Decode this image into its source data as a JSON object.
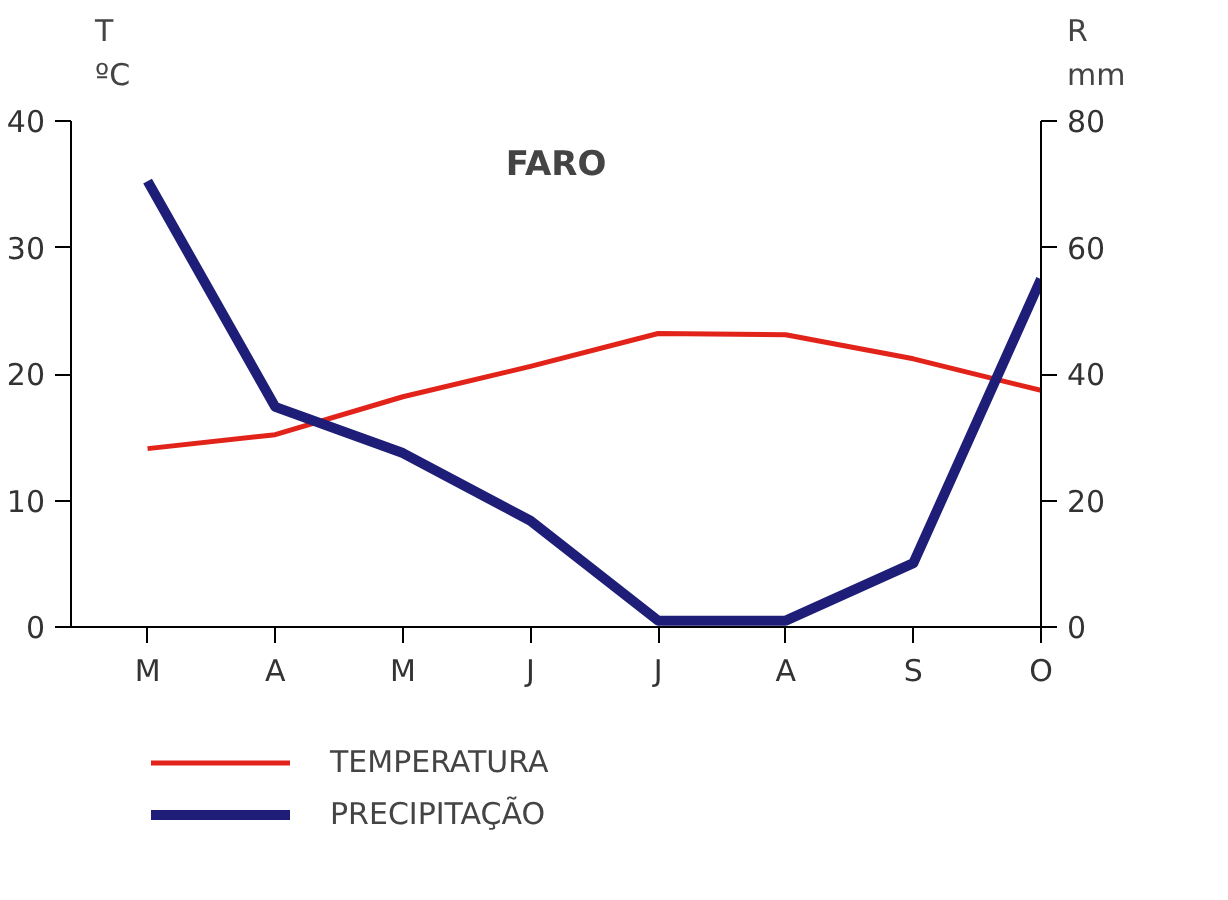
{
  "chart_data": {
    "type": "line",
    "title": "FARO",
    "ylabel": "T\nºC",
    "y2label": "R\nmm",
    "categories": [
      "M",
      "A",
      "M",
      "J",
      "J",
      "A",
      "S",
      "O"
    ],
    "series": [
      {
        "name": "TEMPERATURA",
        "color": "#e2231a",
        "values": [
          14.1,
          15.2,
          18.2,
          20.6,
          23.2,
          23.1,
          21.2,
          18.7
        ]
      },
      {
        "name": "PRECIPITAÇÃO",
        "color": "#1e1e78",
        "axis": "y2",
        "values": [
          70.5,
          34.8,
          27.5,
          16.8,
          1,
          1,
          10.1,
          55
        ]
      }
    ],
    "ylim": [
      0,
      40
    ],
    "yticks": [
      0,
      10,
      20,
      30,
      40
    ],
    "y2lim": [
      0,
      80
    ],
    "y2ticks": [
      0,
      20,
      40,
      60,
      80
    ],
    "legend": "bottom",
    "marker": "none",
    "line_style": "solid"
  }
}
